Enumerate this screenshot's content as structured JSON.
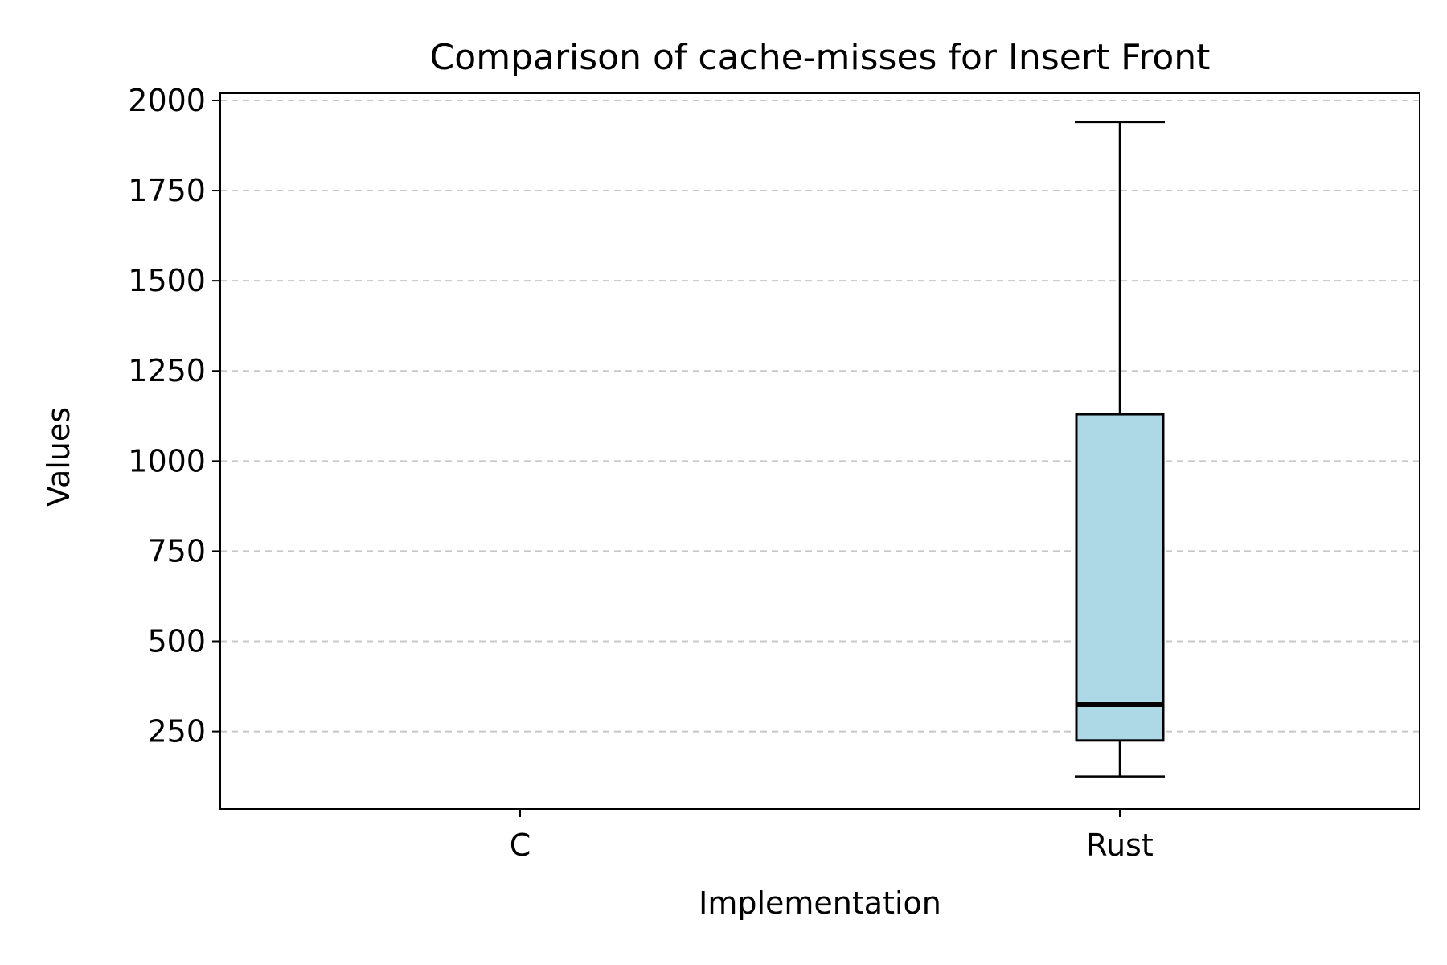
{
  "chart_data": {
    "type": "box",
    "title": "Comparison of cache-misses for Insert Front",
    "xlabel": "Implementation",
    "ylabel": "Values",
    "categories": [
      "C",
      "Rust"
    ],
    "ylim": [
      35,
      2020
    ],
    "yticks": [
      250,
      500,
      750,
      1000,
      1250,
      1500,
      1750,
      2000
    ],
    "grid": "y-dashed",
    "box_color": "#add8e6",
    "boxes": [
      {
        "category": "C",
        "whisker_low": null,
        "q1": null,
        "median": null,
        "q3": null,
        "whisker_high": null
      },
      {
        "category": "Rust",
        "whisker_low": 125,
        "q1": 225,
        "median": 325,
        "q3": 1130,
        "whisker_high": 1940
      }
    ]
  }
}
